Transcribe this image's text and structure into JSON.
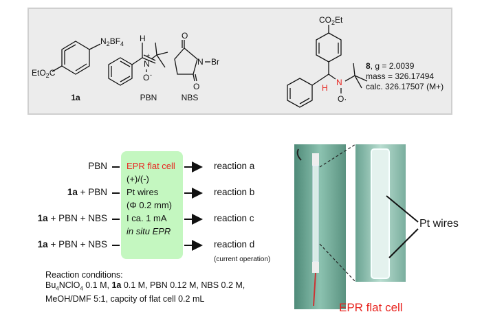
{
  "structures": {
    "c1a": {
      "substituent_top": "N2BF4",
      "substituent_left": "EtO2C",
      "label": "1a"
    },
    "pbn": {
      "label": "PBN",
      "atoms": [
        "H",
        "N",
        "+",
        "O",
        "-"
      ]
    },
    "nbs": {
      "label": "NBS",
      "atoms": [
        "O",
        "O",
        "N",
        "Br"
      ]
    },
    "c8": {
      "substituent_top": "CO2Et",
      "atoms": [
        "H",
        "N",
        "O"
      ],
      "label": "8",
      "g_text": ", g = 2.0039",
      "mass": "mass = 326.17494",
      "calc": "calc. 326.17507 (M+)"
    }
  },
  "cell_box": {
    "lines": [
      "EPR flat cell",
      "(+)/(-)",
      "Pt wires",
      "(Φ 0.2 mm)",
      "I ca. 1 mA",
      "in situ EPR"
    ],
    "highlight_color": "#e8231e",
    "fill_color": "#c4f7c0"
  },
  "inputs": [
    {
      "bold": "",
      "text": "PBN"
    },
    {
      "bold": "1a",
      "text": " + PBN"
    },
    {
      "bold": "1a",
      "text": " + PBN + NBS"
    },
    {
      "bold": "1a",
      "text": " + PBN + NBS"
    }
  ],
  "reactions": [
    "reaction a",
    "reaction b",
    "reaction c",
    "reaction d"
  ],
  "reaction_d_note": "(current operation)",
  "conditions": {
    "title": "Reaction conditions:",
    "line2": "Bu4NClO4 0.1 M, 1a 0.1 M, PBN 0.12 M, NBS 0.2 M,",
    "line3": "MeOH/DMF 5:1, capcity of flat cell 0.2 mL"
  },
  "photo_labels": {
    "pt_wires": "Pt wires",
    "flat_cell": "EPR flat cell"
  }
}
